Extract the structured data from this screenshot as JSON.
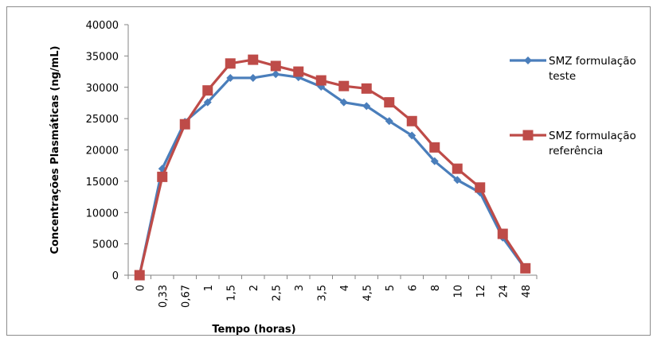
{
  "chart_data": {
    "type": "line",
    "title": "",
    "xlabel": "Tempo (horas)",
    "ylabel": "Concentrações Plasmáticas (ng/mL)",
    "categories": [
      "0",
      "0,33",
      "0,67",
      "1",
      "1,5",
      "2",
      "2,5",
      "3",
      "3,5",
      "4",
      "4,5",
      "5",
      "6",
      "8",
      "10",
      "12",
      "24",
      "48"
    ],
    "ylim": [
      0,
      40000
    ],
    "yticks": [
      0,
      5000,
      10000,
      15000,
      20000,
      25000,
      30000,
      35000,
      40000
    ],
    "grid": false,
    "legend_position": "right",
    "series": [
      {
        "name_lines": [
          "SMZ formulação",
          "teste"
        ],
        "color": "#4a7ebb",
        "marker": "diamond",
        "values": [
          0,
          17000,
          24500,
          27600,
          31500,
          31500,
          32100,
          31600,
          30100,
          27600,
          27000,
          24600,
          22300,
          18200,
          15200,
          13200,
          6000,
          1000
        ]
      },
      {
        "name_lines": [
          "SMZ formulação",
          "referência"
        ],
        "color": "#be4b48",
        "marker": "square",
        "values": [
          0,
          15700,
          24100,
          29500,
          33800,
          34400,
          33400,
          32500,
          31100,
          30200,
          29800,
          27600,
          24600,
          20400,
          17000,
          14000,
          6600,
          1100
        ]
      }
    ]
  }
}
